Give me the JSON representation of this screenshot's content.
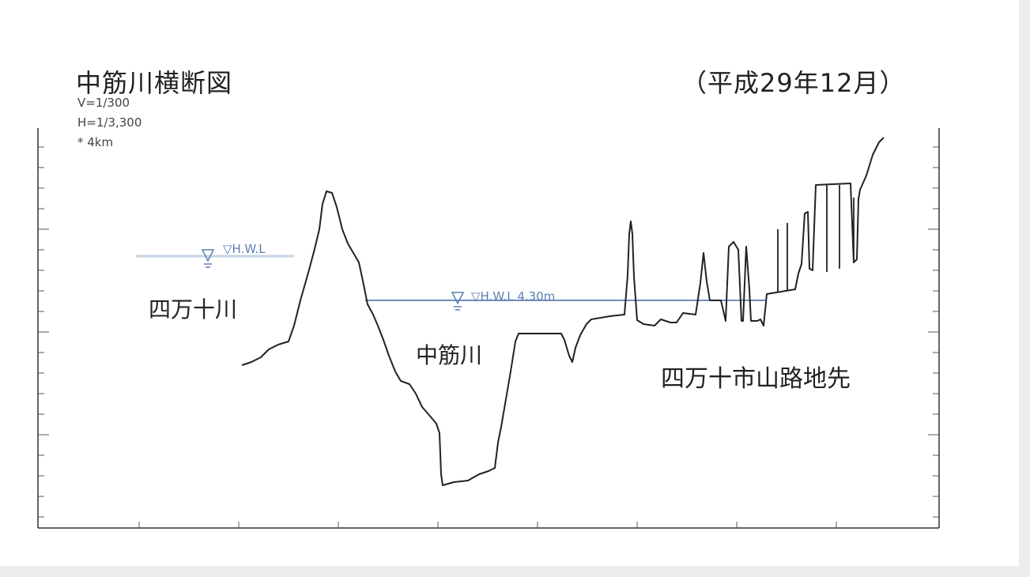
{
  "diagram": {
    "title": "中筋川横断図",
    "date": "（平成29年12月）",
    "scale": {
      "vertical": "V=1/300",
      "horizontal": "H=1/3,300",
      "km": "* 4km"
    },
    "labels": {
      "left_river": "四万十川",
      "center_river": "中筋川",
      "location": "四万十市山路地先"
    },
    "water_levels": {
      "left": "▽H.W.L",
      "center": "▽H.W.L 4.30m"
    },
    "colors": {
      "profile": "#222222",
      "water_level_line": "#6f8fb8",
      "water_level_text": "#5a7fb0"
    }
  }
}
